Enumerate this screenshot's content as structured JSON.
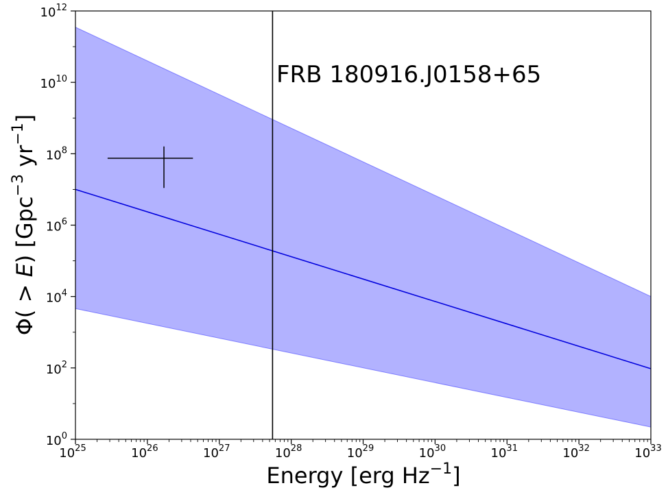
{
  "chart_data": {
    "type": "area",
    "x_scale": "log",
    "y_scale": "log",
    "xlim": [
      1e+25,
      1e+33
    ],
    "ylim": [
      1,
      1000000000000.0
    ],
    "xlabel": {
      "base": "Energy [erg Hz",
      "sup": "−1",
      "close": "]"
    },
    "ylabel": {
      "prefix": "Φ( > ",
      "var": "E",
      "mid": ") [Gpc",
      "sup1": "−3",
      "mid2": " yr",
      "sup2": "−1",
      "close": "]"
    },
    "x_ticks": [
      {
        "base": "10",
        "exp": "25",
        "value": 1e+25
      },
      {
        "base": "10",
        "exp": "26",
        "value": 1e+26
      },
      {
        "base": "10",
        "exp": "27",
        "value": 1e+27
      },
      {
        "base": "10",
        "exp": "28",
        "value": 1e+28
      },
      {
        "base": "10",
        "exp": "29",
        "value": 1e+29
      },
      {
        "base": "10",
        "exp": "30",
        "value": 1e+30
      },
      {
        "base": "10",
        "exp": "31",
        "value": 1e+31
      },
      {
        "base": "10",
        "exp": "32",
        "value": 1e+32
      },
      {
        "base": "10",
        "exp": "33",
        "value": 1e+33
      }
    ],
    "y_ticks": [
      {
        "base": "10",
        "exp": "0",
        "value": 1
      },
      {
        "base": "10",
        "exp": "2",
        "value": 100
      },
      {
        "base": "10",
        "exp": "4",
        "value": 10000.0
      },
      {
        "base": "10",
        "exp": "6",
        "value": 1000000.0
      },
      {
        "base": "10",
        "exp": "8",
        "value": 100000000.0
      },
      {
        "base": "10",
        "exp": "10",
        "value": 10000000000.0
      },
      {
        "base": "10",
        "exp": "12",
        "value": 1000000000000.0
      }
    ],
    "series": [
      {
        "kind": "line",
        "color": "#0000dd",
        "x": [
          1e+25,
          1e+33
        ],
        "y": [
          10000000.0,
          95
        ]
      },
      {
        "kind": "band",
        "color": "#6666ff",
        "opacity": 0.5,
        "x": [
          1e+25,
          1e+33
        ],
        "y_upper": [
          350000000000.0,
          10000.0
        ],
        "y_lower": [
          4600.0,
          2.2
        ]
      },
      {
        "kind": "errorbar",
        "color": "#000000",
        "x": 1.7e+26,
        "y": 75000000.0,
        "x_range": [
          2.8e+25,
          4.3e+26
        ],
        "y_range": [
          11000000.0,
          160000000.0
        ]
      },
      {
        "kind": "vline",
        "color": "#000000",
        "x": 5.5e+27
      }
    ],
    "annotation": {
      "text": "FRB 180916.J0158+65",
      "x": 5.5e+27,
      "y": 1500000000.0
    }
  }
}
